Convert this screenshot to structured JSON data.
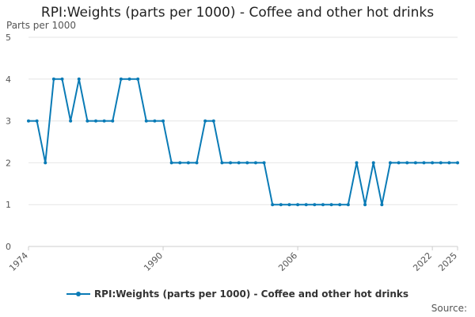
{
  "colors": {
    "series": "#0a7bb6",
    "grid": "#e6e6e6",
    "axis": "#cccccc",
    "text": "#555555"
  },
  "chart_data": {
    "type": "line",
    "title": "RPI:Weights (parts per 1000) - Coffee and other hot drinks",
    "ylabel": "Parts per 1000",
    "xlabel": "",
    "ylim": [
      0,
      5
    ],
    "yticks": [
      0,
      1,
      2,
      3,
      4,
      5
    ],
    "xlim": [
      1974,
      2025
    ],
    "xticks": [
      1974,
      1990,
      2006,
      2022,
      2025
    ],
    "grid": true,
    "legend_position": "bottom",
    "series": [
      {
        "name": "RPI:Weights (parts per 1000) - Coffee and other hot drinks",
        "x": [
          1974,
          1975,
          1976,
          1977,
          1978,
          1979,
          1980,
          1981,
          1982,
          1983,
          1984,
          1985,
          1986,
          1987,
          1988,
          1989,
          1990,
          1991,
          1992,
          1993,
          1994,
          1995,
          1996,
          1997,
          1998,
          1999,
          2000,
          2001,
          2002,
          2003,
          2004,
          2005,
          2006,
          2007,
          2008,
          2009,
          2010,
          2011,
          2012,
          2013,
          2014,
          2015,
          2016,
          2017,
          2018,
          2019,
          2020,
          2021,
          2022,
          2023,
          2024,
          2025
        ],
        "values": [
          3,
          3,
          2,
          4,
          4,
          3,
          4,
          3,
          3,
          3,
          3,
          4,
          4,
          4,
          3,
          3,
          3,
          2,
          2,
          2,
          2,
          3,
          3,
          2,
          2,
          2,
          2,
          2,
          2,
          1,
          1,
          1,
          1,
          1,
          1,
          1,
          1,
          1,
          1,
          2,
          1,
          2,
          1,
          2,
          2,
          2,
          2,
          2,
          2,
          2,
          2,
          2
        ]
      }
    ]
  },
  "footer": {
    "source_label": "Source:"
  }
}
